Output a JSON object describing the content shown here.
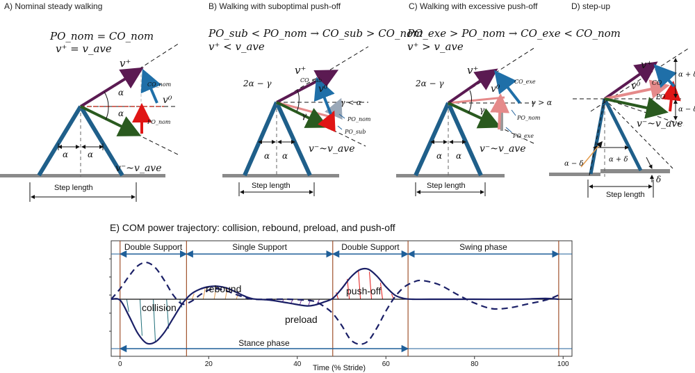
{
  "panels": {
    "a": {
      "title": "A) Nominal steady walking",
      "eq1": "PO_nom = CO_nom",
      "eq2": "v⁺ = v_ave",
      "v_plus": "v⁺",
      "v0": "v⁰",
      "v_minus": "v⁻~v_ave",
      "alpha": "α",
      "co": "CO_nom",
      "po": "PO_nom",
      "step": "Step length"
    },
    "b": {
      "title": "B) Walking with suboptimal push-off",
      "eq1": "PO_sub < PO_nom → CO_sub > CO_nom",
      "eq2": "v⁺ < v_ave",
      "v_plus": "v⁺",
      "v0": "v⁰",
      "v_minus": "v⁻~v_ave",
      "angle": "2α − γ",
      "gamma": "γ",
      "gamma_cond": "γ < α",
      "alpha": "α",
      "co": "CO_sub",
      "po_nom": "PO_nom",
      "po": "PO_sub",
      "step": "Step length"
    },
    "c": {
      "title": "C) Walking with excessive push-off",
      "eq1": "PO_exe > PO_nom → CO_exe < CO_nom",
      "eq2": "v⁺ > v_ave",
      "v_plus": "v⁺",
      "v0": "v⁰",
      "v_minus": "v⁻~v_ave",
      "angle": "2α − γ",
      "gamma": "γ",
      "gamma_cond": "γ > α",
      "alpha": "α",
      "co": "CO_exe",
      "po_nom": "PO_nom",
      "po": "PO_exe",
      "step": "Step length"
    },
    "d": {
      "title": "D) step-up",
      "v_plus": "v⁺",
      "v0": "v⁰",
      "v_minus": "v⁻~v_ave",
      "co": "CO",
      "po": "PO",
      "apd": "α + δ",
      "amd": "α − δ",
      "apd2": "α + δ",
      "amd2": "α − δ",
      "delta": "δ",
      "step": "Step length"
    }
  },
  "chart_data": {
    "type": "line",
    "title": "E) COM power trajectory: collision, rebound, preload, and push-off",
    "xlabel": "Time (% Stride)",
    "ylabel": "",
    "xlim": [
      -2,
      102
    ],
    "ylim": [
      -1,
      1
    ],
    "xticks": [
      0,
      20,
      40,
      60,
      80,
      100
    ],
    "grid": false,
    "phases": [
      {
        "label": "Double Support",
        "start": 0,
        "end": 15
      },
      {
        "label": "Single Support",
        "start": 15,
        "end": 48
      },
      {
        "label": "Double Support",
        "start": 48,
        "end": 65
      },
      {
        "label": "Swing phase",
        "start": 65,
        "end": 99
      }
    ],
    "stance_label": "Stance phase",
    "stance_range": [
      0,
      65
    ],
    "annotations": [
      "collision",
      "rebound",
      "preload",
      "push-off"
    ],
    "series": [
      {
        "style": "solid",
        "color": "#1a1f66",
        "x": [
          -2,
          0,
          2,
          4,
          6,
          8,
          10,
          12,
          14,
          16,
          18,
          20,
          22,
          24,
          26,
          28,
          30,
          34,
          38,
          42,
          44,
          46,
          48,
          50,
          52,
          54,
          56,
          58,
          60,
          62,
          64,
          66,
          70,
          80,
          90,
          96,
          99
        ],
        "y": [
          0,
          -0.02,
          -0.35,
          -0.72,
          -0.93,
          -0.9,
          -0.7,
          -0.4,
          -0.1,
          0.12,
          0.24,
          0.3,
          0.31,
          0.27,
          0.18,
          0.08,
          0.01,
          -0.02,
          -0.08,
          -0.14,
          -0.12,
          -0.06,
          0.02,
          0.25,
          0.52,
          0.7,
          0.72,
          0.55,
          0.3,
          0.1,
          0.02,
          0,
          0,
          0,
          0,
          0.02,
          0
        ]
      },
      {
        "style": "dashed",
        "color": "#1a1f66",
        "x": [
          -2,
          0,
          2,
          4,
          6,
          8,
          10,
          12,
          14,
          16,
          18,
          20,
          22,
          24,
          26,
          28,
          30,
          34,
          38,
          42,
          44,
          46,
          48,
          50,
          52,
          54,
          56,
          58,
          60,
          62,
          64,
          66,
          68,
          72,
          76,
          80,
          84,
          88,
          92,
          96,
          99
        ],
        "y": [
          0,
          0.25,
          0.55,
          0.8,
          0.88,
          0.75,
          0.45,
          0.1,
          -0.1,
          -0.05,
          0.1,
          0.22,
          0.25,
          0.2,
          0.12,
          0.05,
          0,
          0,
          0,
          -0.02,
          -0.05,
          -0.15,
          -0.3,
          -0.55,
          -0.85,
          -0.95,
          -0.88,
          -0.6,
          -0.25,
          0.05,
          0.28,
          0.4,
          0.45,
          0.35,
          0.12,
          -0.08,
          -0.2,
          -0.18,
          -0.1,
          -0.02,
          0.1
        ]
      }
    ]
  }
}
